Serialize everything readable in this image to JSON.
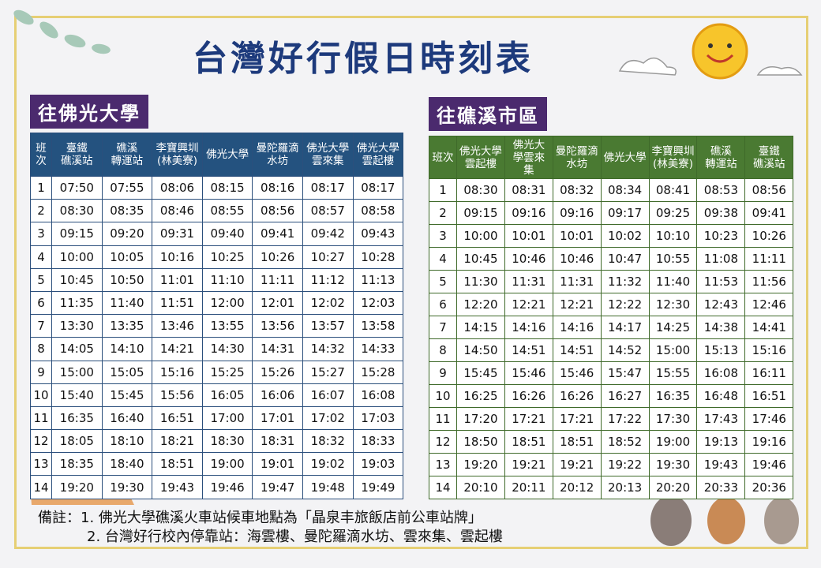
{
  "title": "台灣好行假日時刻表",
  "tables": [
    {
      "heading": "往佛光大學",
      "columns": [
        "班\n次",
        "臺鐵\n礁溪站",
        "礁溪\n轉運站",
        "李寶興圳\n(林美寮)",
        "佛光大學",
        "曼陀羅滴\n水坊",
        "佛光大學\n雲來集",
        "佛光大學\n雲起樓"
      ],
      "rows": [
        [
          "1",
          "07:50",
          "07:55",
          "08:06",
          "08:15",
          "08:16",
          "08:17",
          "08:17"
        ],
        [
          "2",
          "08:30",
          "08:35",
          "08:46",
          "08:55",
          "08:56",
          "08:57",
          "08:58"
        ],
        [
          "3",
          "09:15",
          "09:20",
          "09:31",
          "09:40",
          "09:41",
          "09:42",
          "09:43"
        ],
        [
          "4",
          "10:00",
          "10:05",
          "10:16",
          "10:25",
          "10:26",
          "10:27",
          "10:28"
        ],
        [
          "5",
          "10:45",
          "10:50",
          "11:01",
          "11:10",
          "11:11",
          "11:12",
          "11:13"
        ],
        [
          "6",
          "11:35",
          "11:40",
          "11:51",
          "12:00",
          "12:01",
          "12:02",
          "12:03"
        ],
        [
          "7",
          "13:30",
          "13:35",
          "13:46",
          "13:55",
          "13:56",
          "13:57",
          "13:58"
        ],
        [
          "8",
          "14:05",
          "14:10",
          "14:21",
          "14:30",
          "14:31",
          "14:32",
          "14:33"
        ],
        [
          "9",
          "15:00",
          "15:05",
          "15:16",
          "15:25",
          "15:26",
          "15:27",
          "15:28"
        ],
        [
          "10",
          "15:40",
          "15:45",
          "15:56",
          "16:05",
          "16:06",
          "16:07",
          "16:08"
        ],
        [
          "11",
          "16:35",
          "16:40",
          "16:51",
          "17:00",
          "17:01",
          "17:02",
          "17:03"
        ],
        [
          "12",
          "18:05",
          "18:10",
          "18:21",
          "18:30",
          "18:31",
          "18:32",
          "18:33"
        ],
        [
          "13",
          "18:35",
          "18:40",
          "18:51",
          "19:00",
          "19:01",
          "19:02",
          "19:03"
        ],
        [
          "14",
          "19:20",
          "19:30",
          "19:43",
          "19:46",
          "19:47",
          "19:48",
          "19:49"
        ]
      ]
    },
    {
      "heading": "往礁溪市區",
      "columns": [
        "班次",
        "佛光大學\n雲起樓",
        "佛光大\n學雲來\n集",
        "曼陀羅滴\n水坊",
        "佛光大學",
        "李寶興圳\n(林美寮)",
        "礁溪\n轉運站",
        "臺鐵\n礁溪站"
      ],
      "rows": [
        [
          "1",
          "08:30",
          "08:31",
          "08:32",
          "08:34",
          "08:41",
          "08:53",
          "08:56"
        ],
        [
          "2",
          "09:15",
          "09:16",
          "09:16",
          "09:17",
          "09:25",
          "09:38",
          "09:41"
        ],
        [
          "3",
          "10:00",
          "10:01",
          "10:01",
          "10:02",
          "10:10",
          "10:23",
          "10:26"
        ],
        [
          "4",
          "10:45",
          "10:46",
          "10:46",
          "10:47",
          "10:55",
          "11:08",
          "11:11"
        ],
        [
          "5",
          "11:30",
          "11:31",
          "11:31",
          "11:32",
          "11:40",
          "11:53",
          "11:56"
        ],
        [
          "6",
          "12:20",
          "12:21",
          "12:21",
          "12:22",
          "12:30",
          "12:43",
          "12:46"
        ],
        [
          "7",
          "14:15",
          "14:16",
          "14:16",
          "14:17",
          "14:25",
          "14:38",
          "14:41"
        ],
        [
          "8",
          "14:50",
          "14:51",
          "14:51",
          "14:52",
          "15:00",
          "15:13",
          "15:16"
        ],
        [
          "9",
          "15:45",
          "15:46",
          "15:46",
          "15:47",
          "15:55",
          "16:08",
          "16:11"
        ],
        [
          "10",
          "16:25",
          "16:26",
          "16:26",
          "16:27",
          "16:35",
          "16:48",
          "16:51"
        ],
        [
          "11",
          "17:20",
          "17:21",
          "17:21",
          "17:22",
          "17:30",
          "17:43",
          "17:46"
        ],
        [
          "12",
          "18:50",
          "18:51",
          "18:51",
          "18:52",
          "19:00",
          "19:13",
          "19:16"
        ],
        [
          "13",
          "19:20",
          "19:21",
          "19:21",
          "19:22",
          "19:30",
          "19:43",
          "19:46"
        ],
        [
          "14",
          "20:10",
          "20:11",
          "20:12",
          "20:13",
          "20:20",
          "20:33",
          "20:36"
        ]
      ]
    }
  ],
  "notes": {
    "label": "備註：",
    "items": [
      "1. 佛光大學礁溪火車站候車地點為「晶泉丰旅飯店前公車站牌」",
      "2. 台灣好行校內停靠站：海雲樓、曼陀羅滴水坊、雲來集、雲起樓"
    ]
  }
}
